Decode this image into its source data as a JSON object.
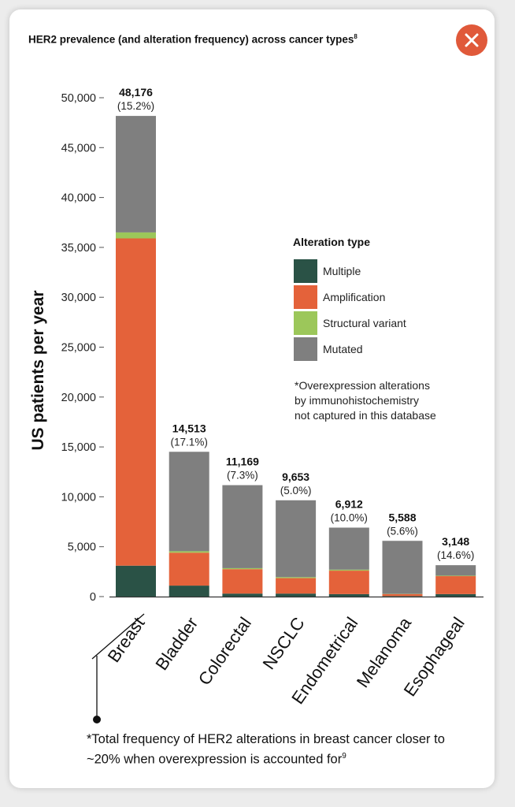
{
  "title": "HER2 prevalence (and alteration frequency) across cancer types",
  "title_superscript": "8",
  "close_icon": "close-icon",
  "footnote": "*Total frequency of HER2 alterations in breast cancer closer to ~20% when overexpression is accounted for",
  "footnote_superscript": "9",
  "colors": {
    "multiple": "#2a5246",
    "amplification": "#e4623a",
    "structural_variant": "#9cc75a",
    "mutated": "#7f7f7f",
    "close_button": "#e0593a"
  },
  "chart_data": {
    "type": "bar",
    "stacked": true,
    "ylabel": "US patients per year",
    "ylim": [
      0,
      50000
    ],
    "yticks": [
      0,
      5000,
      10000,
      15000,
      20000,
      25000,
      30000,
      35000,
      40000,
      45000,
      50000
    ],
    "ytick_labels": [
      "0",
      "5,000",
      "10,000",
      "15,000",
      "20,000",
      "25,000",
      "30,000",
      "35,000",
      "40,000",
      "45,000",
      "50,000"
    ],
    "categories": [
      "Breast",
      "Bladder",
      "Colorectal",
      "NSCLC",
      "Endometrical",
      "Melanoma",
      "Esophageal"
    ],
    "totals": [
      "48,176",
      "14,513",
      "11,169",
      "9,653",
      "6,912",
      "5,588",
      "3,148"
    ],
    "total_values": [
      48176,
      14513,
      11169,
      9653,
      6912,
      5588,
      3148
    ],
    "percents": [
      "(15.2%)",
      "(17.1%)",
      "(7.3%)",
      "(5.0%)",
      "(10.0%)",
      "(5.6%)",
      "(14.6%)"
    ],
    "series": [
      {
        "name": "Multiple",
        "values": [
          3100,
          1100,
          300,
          300,
          250,
          50,
          250
        ]
      },
      {
        "name": "Amplification",
        "values": [
          32800,
          3300,
          2450,
          1550,
          2350,
          200,
          1800
        ]
      },
      {
        "name": "Structural variant",
        "values": [
          600,
          150,
          100,
          100,
          100,
          20,
          50
        ]
      },
      {
        "name": "Mutated",
        "values": [
          11676,
          9963,
          8319,
          7703,
          4212,
          5318,
          1048
        ]
      }
    ],
    "legend": {
      "title": "Alteration type",
      "position": "right",
      "items": [
        "Multiple",
        "Amplification",
        "Structural variant",
        "Mutated"
      ]
    },
    "legend_note": [
      "*Overexpression alterations",
      "by immunohistochemistry",
      "not captured in this database"
    ],
    "grid": false
  }
}
